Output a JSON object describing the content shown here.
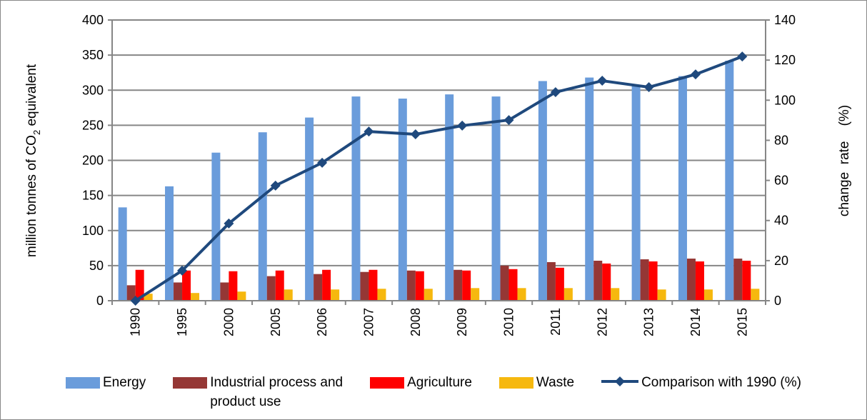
{
  "chart_data": {
    "type": "bar+line",
    "categories": [
      "1990",
      "1995",
      "2000",
      "2005",
      "2006",
      "2007",
      "2008",
      "2009",
      "2010",
      "2011",
      "2012",
      "2013",
      "2014",
      "2015"
    ],
    "series": [
      {
        "name": "Energy",
        "axis": "left",
        "type": "bar",
        "color": "#6A9CDB",
        "values": [
          133,
          163,
          211,
          240,
          261,
          291,
          288,
          294,
          291,
          313,
          318,
          306,
          320,
          342
        ]
      },
      {
        "name": "Industrial  process and product use",
        "axis": "left",
        "type": "bar",
        "color": "#953735",
        "values": [
          22,
          26,
          26,
          35,
          38,
          41,
          43,
          44,
          50,
          55,
          57,
          59,
          60,
          60
        ]
      },
      {
        "name": "Agriculture",
        "axis": "left",
        "type": "bar",
        "color": "#FF0000",
        "values": [
          44,
          43,
          42,
          43,
          44,
          44,
          42,
          43,
          45,
          47,
          53,
          56,
          56,
          57
        ]
      },
      {
        "name": "Waste",
        "axis": "left",
        "type": "bar",
        "color": "#F6B80E",
        "values": [
          10,
          11,
          13,
          16,
          16,
          17,
          17,
          18,
          18,
          18,
          18,
          16,
          16,
          17
        ]
      },
      {
        "name": "Comparison with 1990 (%)",
        "axis": "right",
        "type": "line",
        "color": "#1F497D",
        "values": [
          0,
          15,
          38.5,
          57.4,
          68.8,
          84.4,
          83,
          87.3,
          90.1,
          104,
          109.7,
          106.5,
          112.9,
          121.8
        ]
      }
    ],
    "ylabel_parts": [
      "million  tonnes  of  CO",
      "2",
      "  equivalent"
    ],
    "y2label": "change  rate    (%)",
    "ylim": [
      0,
      400
    ],
    "yticks": [
      "0",
      "50",
      "100",
      "150",
      "200",
      "250",
      "300",
      "350",
      "400"
    ],
    "y2lim": [
      0,
      140
    ],
    "y2ticks": [
      "0",
      "20",
      "40",
      "60",
      "80",
      "100",
      "120",
      "140"
    ],
    "grid": true,
    "legend_position": "bottom",
    "legend": {
      "energy": "Energy",
      "industrial_line1": "Industrial  process and",
      "industrial_line2": "product use",
      "agriculture": "Agriculture",
      "waste": "Waste",
      "comparison": "Comparison with 1990 (%)"
    }
  }
}
